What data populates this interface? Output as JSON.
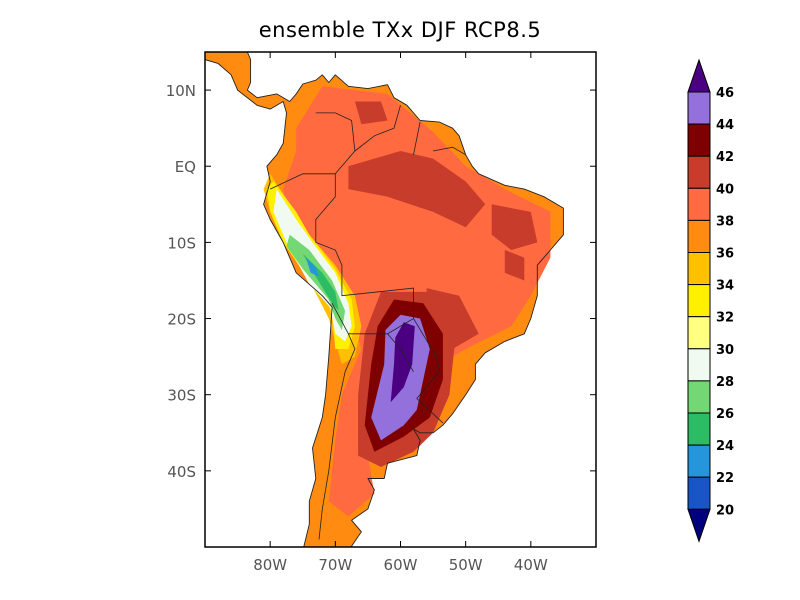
{
  "title": "ensemble TXx DJF RCP8.5",
  "map": {
    "lon_range": [
      -90,
      -30
    ],
    "lat_range": [
      -50,
      15
    ],
    "lat_ticks": [
      {
        "v": 10,
        "label": "10N"
      },
      {
        "v": 0,
        "label": "EQ"
      },
      {
        "v": -10,
        "label": "10S"
      },
      {
        "v": -20,
        "label": "20S"
      },
      {
        "v": -30,
        "label": "30S"
      },
      {
        "v": -40,
        "label": "40S"
      }
    ],
    "lon_ticks": [
      {
        "v": -80,
        "label": "80W"
      },
      {
        "v": -70,
        "label": "70W"
      },
      {
        "v": -60,
        "label": "60W"
      },
      {
        "v": -50,
        "label": "50W"
      },
      {
        "v": -40,
        "label": "40W"
      }
    ]
  },
  "colorbar": {
    "levels": [
      "20",
      "22",
      "24",
      "26",
      "28",
      "30",
      "32",
      "34",
      "36",
      "38",
      "40",
      "42",
      "44",
      "46"
    ],
    "below_color": "#00007f",
    "above_color": "#4b0082",
    "colors": [
      "#1a55c8",
      "#2596dc",
      "#2cbc63",
      "#73d874",
      "#f0faf0",
      "#ffff80",
      "#fff000",
      "#ffc000",
      "#ff8c10",
      "#ff6a40",
      "#c83c2c",
      "#7f0000",
      "#9370db"
    ]
  }
}
